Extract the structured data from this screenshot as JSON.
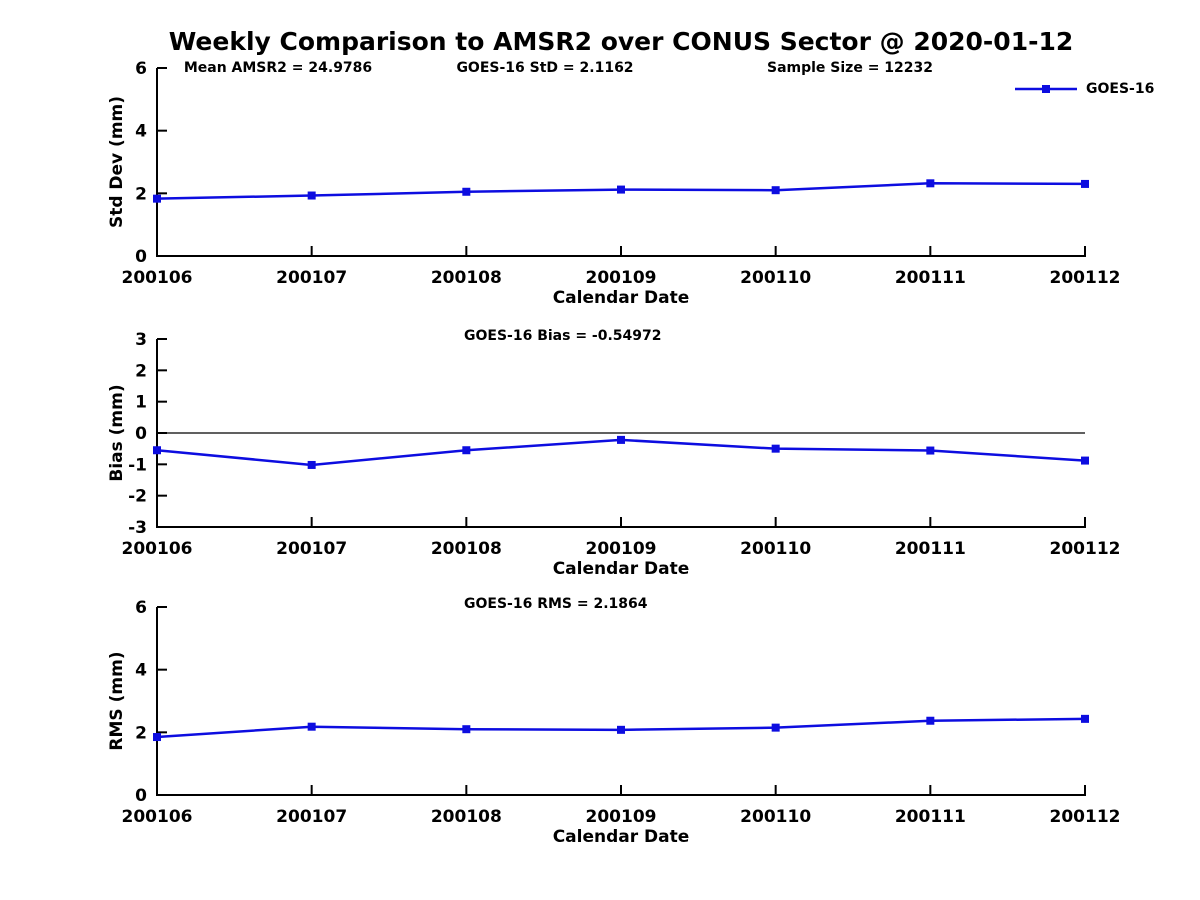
{
  "title": "Weekly Comparison to AMSR2 over CONUS Sector @ 2020-01-12",
  "legend": {
    "label": "GOES-16"
  },
  "colors": {
    "line": "#0d0de0",
    "axis": "#000000",
    "text": "#000000",
    "background": "#ffffff"
  },
  "chart_data": [
    {
      "id": "std-dev",
      "type": "line",
      "annotations": [
        "Mean AMSR2 = 24.9786",
        "GOES-16 StD = 2.1162",
        "Sample Size = 12232"
      ],
      "series_name": "GOES-16",
      "categories": [
        "200106",
        "200107",
        "200108",
        "200109",
        "200110",
        "200111",
        "200112"
      ],
      "values": [
        1.83,
        1.93,
        2.05,
        2.12,
        2.1,
        2.32,
        2.3
      ],
      "ylabel": "Std Dev (mm)",
      "xlabel": "Calendar Date",
      "ylim": [
        0,
        6
      ],
      "yticks": [
        0,
        2,
        4,
        6
      ],
      "zero_line": false,
      "grid": false,
      "legend_position": "top-right"
    },
    {
      "id": "bias",
      "type": "line",
      "annotations": [
        "GOES-16 Bias  = -0.54972"
      ],
      "series_name": "GOES-16",
      "categories": [
        "200106",
        "200107",
        "200108",
        "200109",
        "200110",
        "200111",
        "200112"
      ],
      "values": [
        -0.55,
        -1.02,
        -0.55,
        -0.22,
        -0.5,
        -0.56,
        -0.88
      ],
      "ylabel": "Bias (mm)",
      "xlabel": "Calendar Date",
      "ylim": [
        -3,
        3
      ],
      "yticks": [
        -3,
        -2,
        -1,
        0,
        1,
        2,
        3
      ],
      "zero_line": true,
      "grid": false
    },
    {
      "id": "rms",
      "type": "line",
      "annotations": [
        "GOES-16 RMS = 2.1864"
      ],
      "series_name": "GOES-16",
      "categories": [
        "200106",
        "200107",
        "200108",
        "200109",
        "200110",
        "200111",
        "200112"
      ],
      "values": [
        1.85,
        2.18,
        2.1,
        2.08,
        2.15,
        2.37,
        2.43
      ],
      "ylabel": "RMS (mm)",
      "xlabel": "Calendar Date",
      "ylim": [
        0,
        6
      ],
      "yticks": [
        0,
        2,
        4,
        6
      ],
      "zero_line": false,
      "grid": false
    }
  ]
}
